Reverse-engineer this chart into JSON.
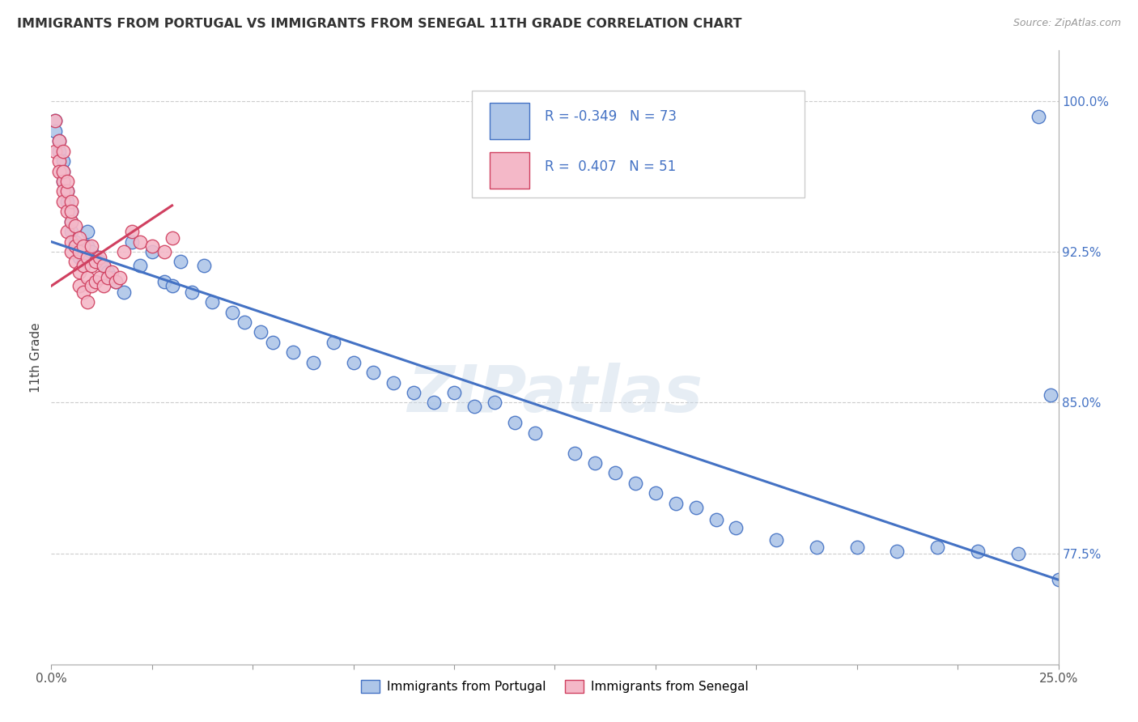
{
  "title": "IMMIGRANTS FROM PORTUGAL VS IMMIGRANTS FROM SENEGAL 11TH GRADE CORRELATION CHART",
  "source": "Source: ZipAtlas.com",
  "ylabel": "11th Grade",
  "ylabel_right_ticks": [
    "100.0%",
    "92.5%",
    "85.0%",
    "77.5%"
  ],
  "ylabel_right_vals": [
    1.0,
    0.925,
    0.85,
    0.775
  ],
  "xlim": [
    0.0,
    0.25
  ],
  "ylim": [
    0.72,
    1.025
  ],
  "watermark": "ZIPatlas",
  "legend_r1": "R = -0.349",
  "legend_n1": "N = 73",
  "legend_r2": "R =  0.407",
  "legend_n2": "N = 51",
  "blue_color": "#aec6e8",
  "pink_color": "#f4b8c8",
  "line_blue": "#4472c4",
  "line_pink": "#d04060",
  "portugal_x": [
    0.001,
    0.001,
    0.002,
    0.002,
    0.003,
    0.003,
    0.003,
    0.004,
    0.004,
    0.005,
    0.005,
    0.005,
    0.006,
    0.006,
    0.007,
    0.007,
    0.008,
    0.008,
    0.009,
    0.009,
    0.01,
    0.011,
    0.012,
    0.013,
    0.014,
    0.015,
    0.016,
    0.018,
    0.02,
    0.022,
    0.025,
    0.028,
    0.03,
    0.032,
    0.035,
    0.038,
    0.04,
    0.045,
    0.048,
    0.052,
    0.055,
    0.06,
    0.065,
    0.07,
    0.075,
    0.08,
    0.085,
    0.09,
    0.095,
    0.1,
    0.105,
    0.11,
    0.115,
    0.12,
    0.13,
    0.135,
    0.14,
    0.145,
    0.15,
    0.155,
    0.16,
    0.165,
    0.17,
    0.18,
    0.19,
    0.2,
    0.21,
    0.22,
    0.23,
    0.24,
    0.245,
    0.248,
    0.25
  ],
  "portugal_y": [
    0.99,
    0.985,
    0.98,
    0.975,
    0.97,
    0.965,
    0.96,
    0.955,
    0.95,
    0.945,
    0.94,
    0.935,
    0.93,
    0.928,
    0.925,
    0.922,
    0.92,
    0.918,
    0.935,
    0.928,
    0.925,
    0.922,
    0.92,
    0.918,
    0.915,
    0.912,
    0.91,
    0.905,
    0.93,
    0.918,
    0.925,
    0.91,
    0.908,
    0.92,
    0.905,
    0.918,
    0.9,
    0.895,
    0.89,
    0.885,
    0.88,
    0.875,
    0.87,
    0.88,
    0.87,
    0.865,
    0.86,
    0.855,
    0.85,
    0.855,
    0.848,
    0.85,
    0.84,
    0.835,
    0.825,
    0.82,
    0.815,
    0.81,
    0.805,
    0.8,
    0.798,
    0.792,
    0.788,
    0.782,
    0.778,
    0.778,
    0.776,
    0.778,
    0.776,
    0.775,
    0.992,
    0.854,
    0.762
  ],
  "senegal_x": [
    0.001,
    0.001,
    0.002,
    0.002,
    0.002,
    0.003,
    0.003,
    0.003,
    0.003,
    0.003,
    0.004,
    0.004,
    0.004,
    0.004,
    0.005,
    0.005,
    0.005,
    0.005,
    0.005,
    0.006,
    0.006,
    0.006,
    0.007,
    0.007,
    0.007,
    0.007,
    0.008,
    0.008,
    0.008,
    0.009,
    0.009,
    0.009,
    0.01,
    0.01,
    0.01,
    0.011,
    0.011,
    0.012,
    0.012,
    0.013,
    0.013,
    0.014,
    0.015,
    0.016,
    0.017,
    0.018,
    0.02,
    0.022,
    0.025,
    0.028,
    0.03
  ],
  "senegal_y": [
    0.99,
    0.975,
    0.97,
    0.965,
    0.98,
    0.96,
    0.955,
    0.95,
    0.975,
    0.965,
    0.945,
    0.955,
    0.935,
    0.96,
    0.94,
    0.93,
    0.95,
    0.945,
    0.925,
    0.938,
    0.928,
    0.92,
    0.932,
    0.925,
    0.915,
    0.908,
    0.928,
    0.918,
    0.905,
    0.922,
    0.912,
    0.9,
    0.928,
    0.918,
    0.908,
    0.92,
    0.91,
    0.922,
    0.912,
    0.918,
    0.908,
    0.912,
    0.915,
    0.91,
    0.912,
    0.925,
    0.935,
    0.93,
    0.928,
    0.925,
    0.932
  ],
  "blue_line_x0": 0.0,
  "blue_line_x1": 0.25,
  "blue_line_y0": 0.93,
  "blue_line_y1": 0.762,
  "pink_line_x0": 0.0,
  "pink_line_x1": 0.03,
  "pink_line_y0": 0.908,
  "pink_line_y1": 0.948
}
